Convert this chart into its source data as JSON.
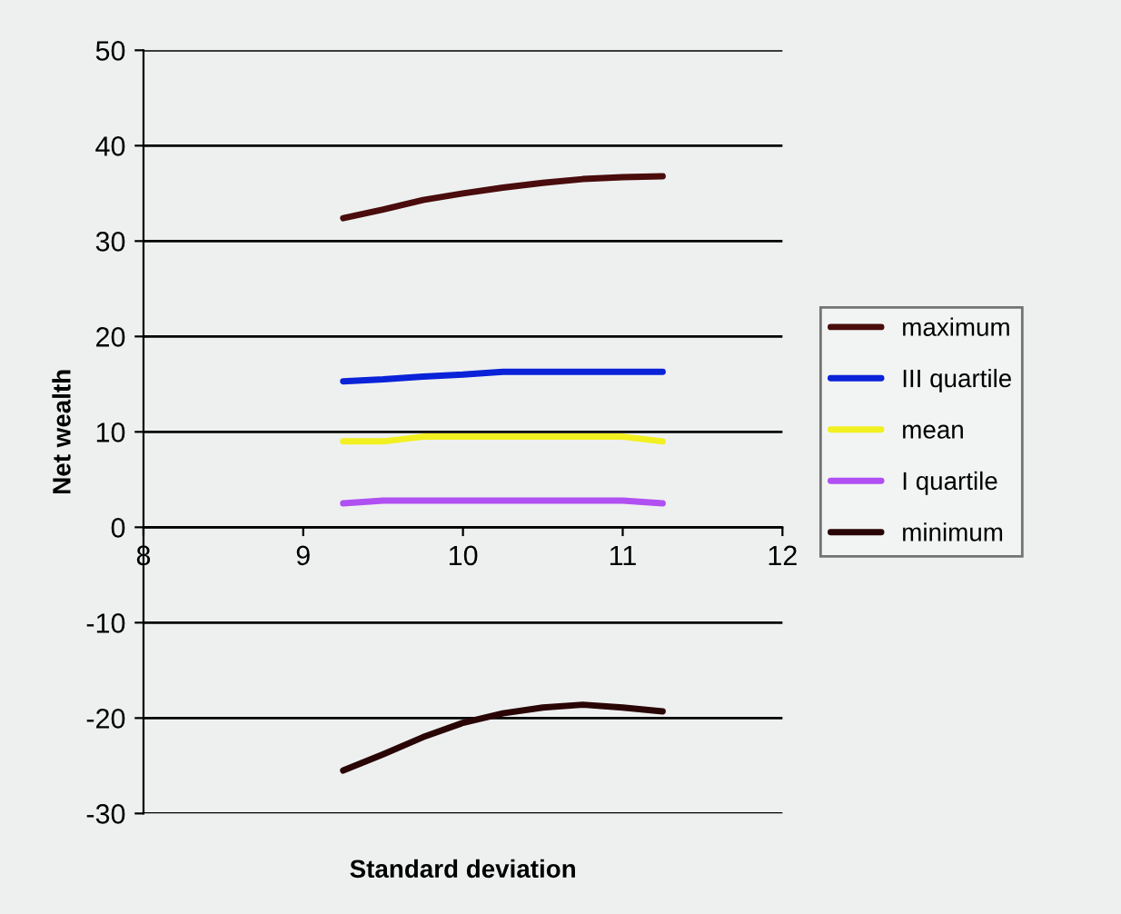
{
  "chart_data": {
    "type": "line",
    "xlabel": "Standard deviation",
    "ylabel": "Net wealth",
    "x": [
      9.25,
      9.5,
      9.75,
      10,
      10.25,
      10.5,
      10.75,
      11,
      11.25
    ],
    "series": [
      {
        "name": "maximum",
        "color": "#4a0c0c",
        "values": [
          32.4,
          33.3,
          34.3,
          35.0,
          35.6,
          36.1,
          36.5,
          36.7,
          36.8
        ]
      },
      {
        "name": "III quartile",
        "color": "#0a22d8",
        "values": [
          15.3,
          15.5,
          15.8,
          16.0,
          16.3,
          16.3,
          16.3,
          16.3,
          16.3
        ]
      },
      {
        "name": "mean",
        "color": "#f2f020",
        "values": [
          9.0,
          9.0,
          9.5,
          9.5,
          9.5,
          9.5,
          9.5,
          9.5,
          9.0
        ]
      },
      {
        "name": "I quartile",
        "color": "#b050f2",
        "values": [
          2.5,
          2.8,
          2.8,
          2.8,
          2.8,
          2.8,
          2.8,
          2.8,
          2.5
        ]
      },
      {
        "name": "minimum",
        "color": "#2a0505",
        "values": [
          -25.5,
          -23.8,
          -22.0,
          -20.5,
          -19.5,
          -18.9,
          -18.6,
          -18.9,
          -19.3
        ]
      }
    ],
    "xlim": [
      8,
      12
    ],
    "xticks": [
      8,
      9,
      10,
      11,
      12
    ],
    "ylim": [
      -30,
      50
    ],
    "yticks": [
      -30,
      -20,
      -10,
      0,
      10,
      20,
      30,
      40,
      50
    ],
    "grid": "y",
    "legend": "right",
    "marker": "none",
    "line_style": "solid"
  }
}
